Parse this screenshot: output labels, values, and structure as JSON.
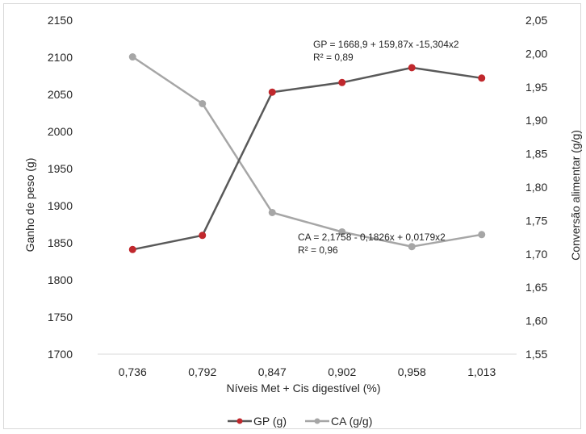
{
  "chart_data": {
    "type": "line",
    "title": "",
    "xlabel": "Níveis Met + Cis digestível (%)",
    "ylabel_left": "Ganho de peso (g)",
    "ylabel_right": "Conversão alimentar (g/g)",
    "categories": [
      "0,736",
      "0,792",
      "0,847",
      "0,902",
      "0,958",
      "1,013"
    ],
    "y_left": {
      "min": 1700,
      "max": 2150,
      "step": 50,
      "ticks": [
        "1700",
        "1750",
        "1800",
        "1850",
        "1900",
        "1950",
        "2000",
        "2050",
        "2100",
        "2150"
      ]
    },
    "y_right": {
      "min": 1.55,
      "max": 2.05,
      "step": 0.05,
      "ticks": [
        "1,55",
        "1,60",
        "1,65",
        "1,70",
        "1,75",
        "1,80",
        "1,85",
        "1,90",
        "1,95",
        "2,00",
        "2,05"
      ]
    },
    "grid": false,
    "legend_position": "bottom",
    "series": [
      {
        "name": "GP (g)",
        "axis": "left",
        "color": "#595959",
        "marker_color": "#c0282d",
        "values": [
          1841,
          1860,
          2053,
          2066,
          2086,
          2072
        ]
      },
      {
        "name": "CA (g/g)",
        "axis": "right",
        "color": "#a6a6a6",
        "marker_color": "#a6a6a6",
        "values": [
          1.995,
          1.925,
          1.762,
          1.733,
          1.711,
          1.729
        ]
      }
    ],
    "annotations": [
      {
        "series": "GP (g)",
        "equation": "GP = 1668,9 + 159,87x  -15,304x2",
        "r2": "R² = 0,89"
      },
      {
        "series": "CA (g/g)",
        "equation": "CA = 2,1758 - 0,1826x + 0,0179x2",
        "r2": "R² = 0,96"
      }
    ]
  }
}
